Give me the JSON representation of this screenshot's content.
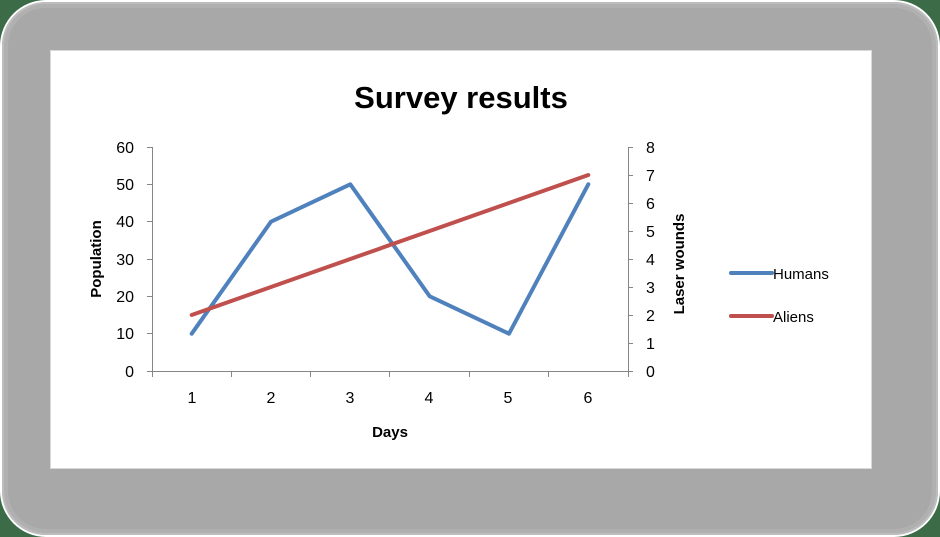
{
  "chart_data": {
    "type": "line",
    "title": "Survey results",
    "xlabel": "Days",
    "ylabel": "Population",
    "y2label": "Laser wounds",
    "categories": [
      "1",
      "2",
      "3",
      "4",
      "5",
      "6"
    ],
    "x": [
      1,
      2,
      3,
      4,
      5,
      6
    ],
    "ylim": [
      0,
      60
    ],
    "y2lim": [
      0,
      8
    ],
    "yticks": [
      "0",
      "10",
      "20",
      "30",
      "40",
      "50",
      "60"
    ],
    "y2ticks": [
      "0",
      "1",
      "2",
      "3",
      "4",
      "5",
      "6",
      "7",
      "8"
    ],
    "grid": false,
    "legend_position": "right",
    "series": [
      {
        "name": "Humans",
        "axis": "primary",
        "color": "#4f81bd",
        "values": [
          10,
          40,
          50,
          20,
          10,
          50
        ]
      },
      {
        "name": "Aliens",
        "axis": "secondary",
        "color": "#c0504d",
        "values": [
          2,
          3,
          4,
          5,
          6,
          7
        ]
      }
    ]
  }
}
